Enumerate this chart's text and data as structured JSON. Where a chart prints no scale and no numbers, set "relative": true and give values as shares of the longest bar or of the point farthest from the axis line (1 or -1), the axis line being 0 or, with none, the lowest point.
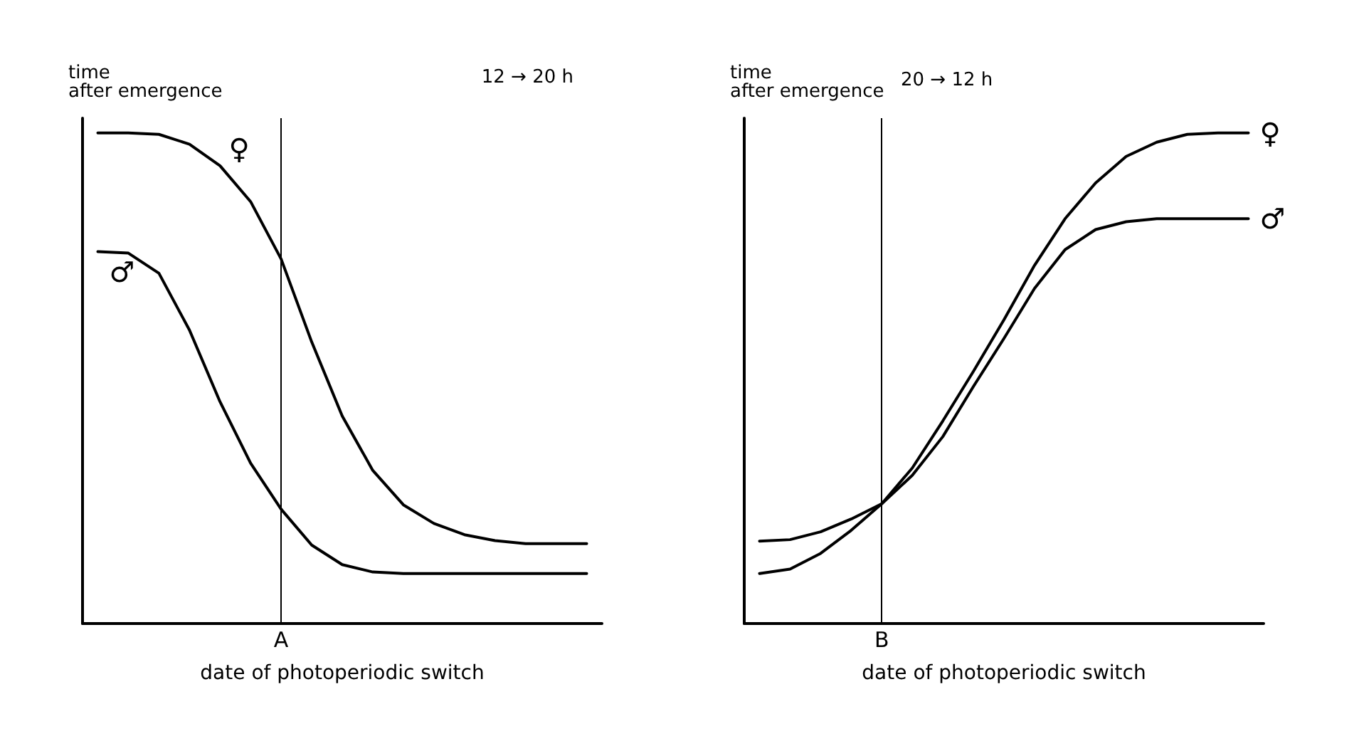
{
  "chart_data": [
    {
      "type": "line",
      "relative": true,
      "ylabel": "time\nafter emergence",
      "xlabel": "date of photoperiodic switch",
      "categories": [
        null,
        null,
        null,
        null,
        null,
        null,
        null,
        null,
        null,
        null,
        null,
        null,
        null,
        null,
        null,
        null,
        null
      ],
      "series": [
        {
          "name": "♀",
          "color": "#000000",
          "values": [
            1,
            1,
            0.997,
            0.977,
            0.933,
            0.86,
            0.743,
            0.574,
            0.423,
            0.312,
            0.242,
            0.204,
            0.181,
            0.169,
            0.163,
            0.163,
            0.163
          ]
        },
        {
          "name": "♂",
          "color": "#000000",
          "values": [
            0.758,
            0.755,
            0.714,
            0.598,
            0.452,
            0.327,
            0.233,
            0.16,
            0.12,
            0.105,
            0.102,
            0.102,
            0.102,
            0.102,
            0.102,
            0.102,
            0.102
          ]
        }
      ],
      "annotations": [
        "12 → 20 h",
        "A"
      ],
      "grid": false,
      "marker": "none"
    },
    {
      "type": "line",
      "relative": true,
      "ylabel": "time\nafter emergence",
      "xlabel": "date of photoperiodic switch",
      "categories": [
        null,
        null,
        null,
        null,
        null,
        null,
        null,
        null,
        null,
        null,
        null,
        null,
        null,
        null,
        null,
        null,
        null
      ],
      "series": [
        {
          "name": "♀",
          "color": "#000000",
          "values": [
            0.102,
            0.111,
            0.143,
            0.19,
            0.244,
            0.317,
            0.413,
            0.514,
            0.619,
            0.73,
            0.825,
            0.898,
            0.952,
            0.981,
            0.997,
            1,
            1
          ]
        },
        {
          "name": "♂",
          "color": "#000000",
          "values": [
            0.168,
            0.171,
            0.187,
            0.213,
            0.244,
            0.302,
            0.381,
            0.483,
            0.581,
            0.683,
            0.762,
            0.803,
            0.819,
            0.825,
            0.825,
            0.825,
            0.825
          ]
        }
      ],
      "annotations": [
        "20 → 12 h",
        "B"
      ],
      "grid": false,
      "marker": "none"
    }
  ]
}
